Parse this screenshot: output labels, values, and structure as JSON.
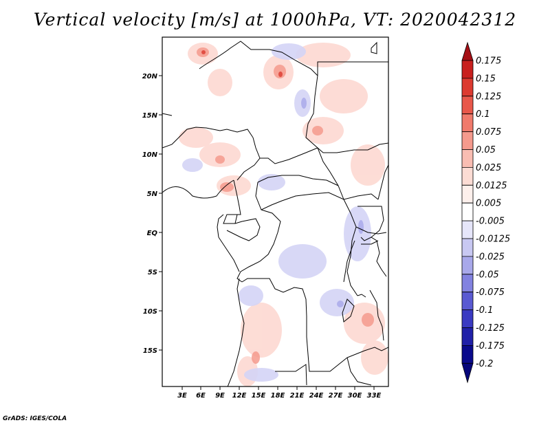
{
  "title": "Vertical velocity [m/s] at 1000hPa, VT: 2020042312",
  "credit": "GrADS: IGES/COLA",
  "map": {
    "lat_labels": [
      "20N",
      "15N",
      "10N",
      "5N",
      "EQ",
      "5S",
      "10S",
      "15S"
    ],
    "lon_labels": [
      "3E",
      "6E",
      "9E",
      "12E",
      "15E",
      "18E",
      "21E",
      "24E",
      "27E",
      "30E",
      "33E"
    ]
  },
  "colorbar": {
    "levels": [
      "0.175",
      "0.15",
      "0.125",
      "0.1",
      "0.075",
      "0.05",
      "0.025",
      "0.0125",
      "0.005",
      "-0.005",
      "-0.0125",
      "-0.025",
      "-0.05",
      "-0.075",
      "-0.1",
      "-0.125",
      "-0.175",
      "-0.2"
    ],
    "colors": [
      "#a50f15",
      "#c8201e",
      "#dc3a30",
      "#e8574a",
      "#f07a6c",
      "#f59a8d",
      "#f9bdb2",
      "#fcdcd4",
      "#fdf0ec",
      "#ffffff",
      "#e6e6fa",
      "#c8c8f2",
      "#a8a8ea",
      "#8282e0",
      "#5a5ad2",
      "#3a3ac2",
      "#2020a8",
      "#0a0a8c",
      "#06067a"
    ]
  }
}
